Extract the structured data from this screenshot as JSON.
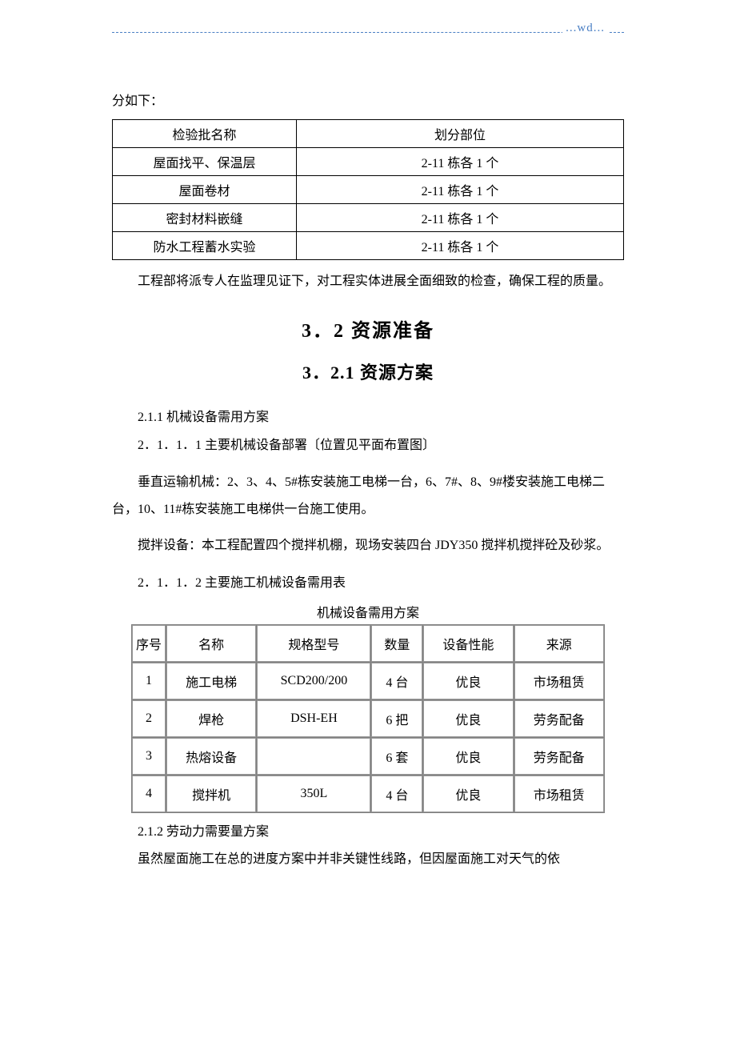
{
  "header": {
    "watermark": "...wd..."
  },
  "intro_line": "分如下：",
  "table1": {
    "columns": [
      "检验批名称",
      "划分部位"
    ],
    "rows": [
      [
        "屋面找平、保温层",
        "2-11 栋各 1 个"
      ],
      [
        "屋面卷材",
        "2-11 栋各 1 个"
      ],
      [
        "密封材料嵌缝",
        "2-11 栋各 1 个"
      ],
      [
        "防水工程蓄水实验",
        "2-11 栋各 1 个"
      ]
    ]
  },
  "para1": "工程部将派专人在监理见证下，对工程实体进展全面细致的检查，确保工程的质量。",
  "section_3_2": "3．2 资源准备",
  "section_3_2_1": "3．2.1 资源方案",
  "sub_2_1_1": "2.1.1 机械设备需用方案",
  "sub_2_1_1_1": "2．1．1．1 主要机械设备部署〔位置见平面布置图〕",
  "para_vertical": "垂直运输机械：2、3、4、5#栋安装施工电梯一台，6、7#、8、9#楼安装施工电梯二台，10、11#栋安装施工电梯供一台施工使用。",
  "para_mixer": "搅拌设备：本工程配置四个搅拌机棚，现场安装四台 JDY350 搅拌机搅拌砼及砂浆。",
  "sub_2_1_1_2": "2．1．1．2 主要施工机械设备需用表",
  "table2_title": "机械设备需用方案",
  "table2": {
    "columns": [
      "序号",
      "名称",
      "规格型号",
      "数量",
      "设备性能",
      "来源"
    ],
    "rows": [
      [
        "1",
        "施工电梯",
        "SCD200/200",
        "4 台",
        "优良",
        "市场租赁"
      ],
      [
        "2",
        "焊枪",
        "DSH-EH",
        "6 把",
        "优良",
        "劳务配备"
      ],
      [
        "3",
        "热熔设备",
        "",
        "6 套",
        "优良",
        "劳务配备"
      ],
      [
        "4",
        "搅拌机",
        "350L",
        "4 台",
        "优良",
        "市场租赁"
      ]
    ]
  },
  "sub_2_1_2": "2.1.2 劳动力需要量方案",
  "para_last": "虽然屋面施工在总的进度方案中并非关键性线路，但因屋面施工对天气的依"
}
